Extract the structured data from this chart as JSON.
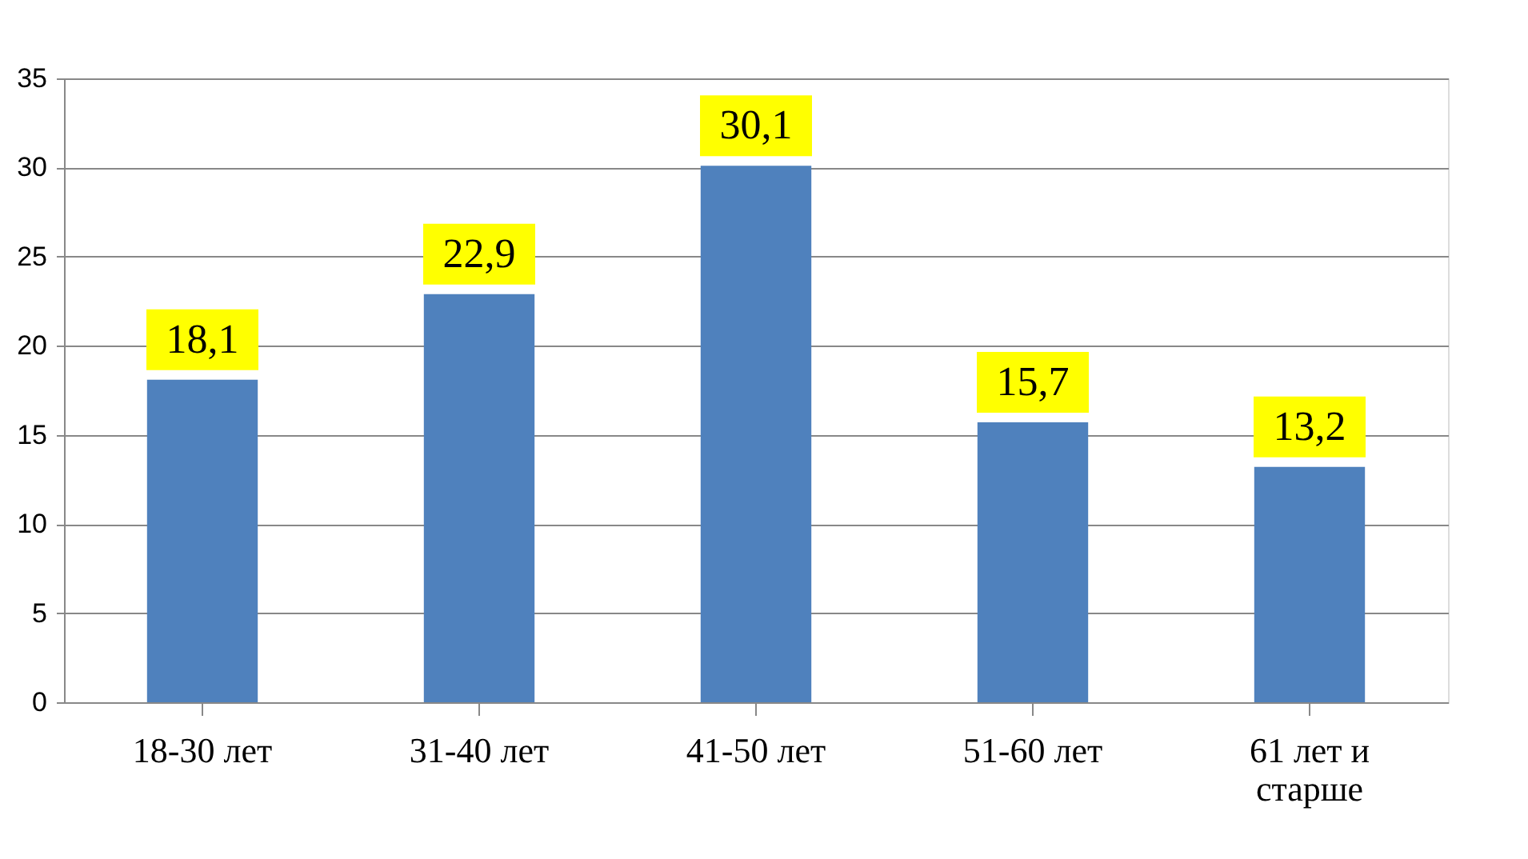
{
  "chart_data": {
    "type": "bar",
    "categories": [
      "18-30 лет",
      "31-40 лет",
      "41-50 лет",
      "51-60 лет",
      "61 лет и старше"
    ],
    "values": [
      18.1,
      22.9,
      30.1,
      15.7,
      13.2
    ],
    "value_labels": [
      "18,1",
      "22,9",
      "30,1",
      "15,7",
      "13,2"
    ],
    "color": "#4f81bd",
    "ylim": [
      0,
      35
    ],
    "yticks": [
      0,
      5,
      10,
      15,
      20,
      25,
      30,
      35
    ],
    "grid": "y"
  }
}
